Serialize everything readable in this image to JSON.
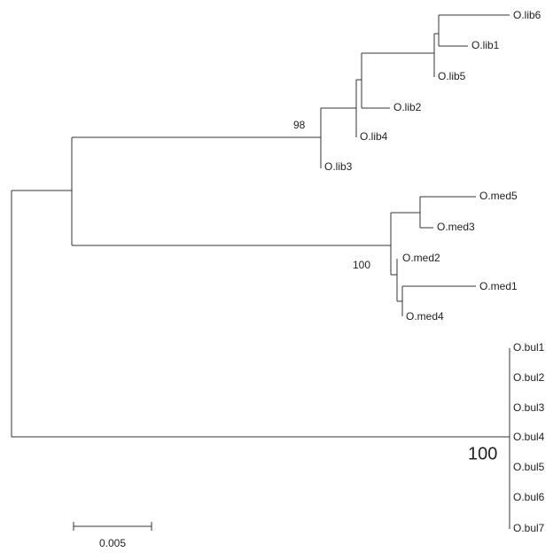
{
  "tree": {
    "leaves": [
      "O.lib6",
      "O.lib1",
      "O.lib5",
      "O.lib2",
      "O.lib4",
      "O.lib3",
      "O.med5",
      "O.med3",
      "O.med2",
      "O.med1",
      "O.med4",
      "O.bul1",
      "O.bul2",
      "O.bul3",
      "O.bul4",
      "O.bul5",
      "O.bul6",
      "O.bul7"
    ],
    "support": [
      98,
      100,
      100
    ],
    "scale_label": "0.005"
  }
}
